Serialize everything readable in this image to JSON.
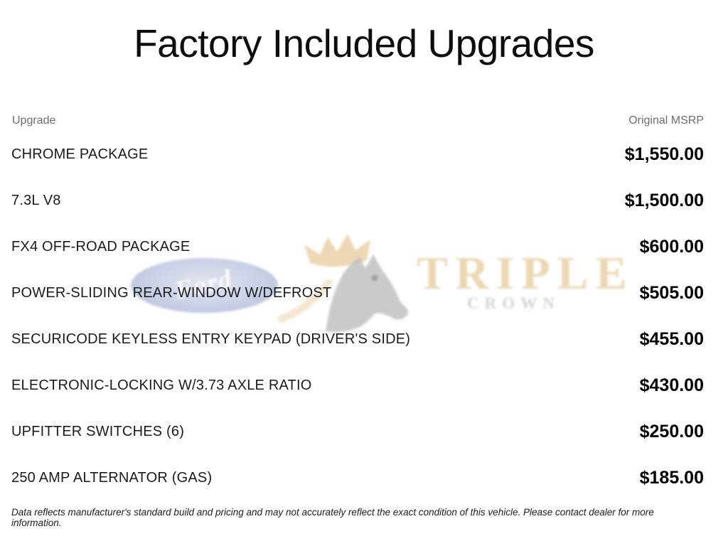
{
  "title": "Factory Included Upgrades",
  "table": {
    "headers": {
      "upgrade": "Upgrade",
      "msrp": "Original MSRP"
    },
    "rows": [
      {
        "upgrade": "CHROME PACKAGE",
        "msrp": "$1,550.00"
      },
      {
        "upgrade": "7.3L V8",
        "msrp": "$1,500.00"
      },
      {
        "upgrade": "FX4 OFF-ROAD PACKAGE",
        "msrp": "$600.00"
      },
      {
        "upgrade": "POWER-SLIDING REAR-WINDOW W/DEFROST",
        "msrp": "$505.00"
      },
      {
        "upgrade": "SECURICODE KEYLESS ENTRY KEYPAD (DRIVER'S SIDE)",
        "msrp": "$455.00"
      },
      {
        "upgrade": "ELECTRONIC-LOCKING W/3.73 AXLE RATIO",
        "msrp": "$430.00"
      },
      {
        "upgrade": "UPFITTER SWITCHES (6)",
        "msrp": "$250.00"
      },
      {
        "upgrade": "250 AMP ALTERNATOR (GAS)",
        "msrp": "$185.00"
      }
    ]
  },
  "disclaimer": "Data reflects manufacturer's standard build and pricing and may not accurately reflect the exact condition of this vehicle. Please contact dealer for more information.",
  "watermark": {
    "ford_label": "Ford",
    "line1": "TRIPLE",
    "line2": "CROWN",
    "colors": {
      "triple_text": "#ead3ab",
      "crown_text": "#d2d2d2",
      "crown_gold": "#d9a85e",
      "horse_gray": "#9a9a9a",
      "ford_blue": "#8290c2"
    }
  }
}
